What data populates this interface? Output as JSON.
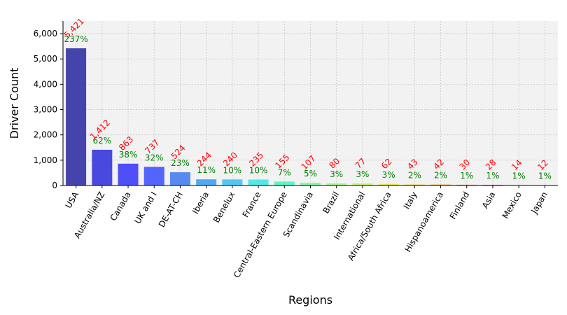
{
  "chart_data": {
    "type": "bar",
    "xlabel": "Regions",
    "ylabel": "Driver Count",
    "ylim": [
      0,
      6500
    ],
    "yticks": [
      0,
      1000,
      2000,
      3000,
      4000,
      5000,
      6000
    ],
    "ytick_labels": [
      "0",
      "1,000",
      "2,000",
      "3,000",
      "4,000",
      "5,000",
      "6,000"
    ],
    "grid": true,
    "categories": [
      "USA",
      "Australia/NZ",
      "Canada",
      "UK and I",
      "DE-AT-CH",
      "Iberia",
      "Benelux",
      "France",
      "Central-Eastern Europe",
      "Scandinavia",
      "Brazil",
      "International",
      "Africa/South Africa",
      "Italy",
      "Hispanoamerica",
      "Finland",
      "Asia",
      "Mexico",
      "Japan"
    ],
    "values": [
      5421,
      1412,
      863,
      737,
      524,
      244,
      240,
      235,
      155,
      107,
      80,
      77,
      62,
      43,
      42,
      30,
      28,
      14,
      12
    ],
    "value_labels": [
      "5,421",
      "1,412",
      "863",
      "737",
      "524",
      "244",
      "240",
      "235",
      "155",
      "107",
      "80",
      "77",
      "62",
      "43",
      "42",
      "30",
      "28",
      "14",
      "12"
    ],
    "percent_labels": [
      "237%",
      "62%",
      "38%",
      "32%",
      "23%",
      "11%",
      "10%",
      "10%",
      "7%",
      "5%",
      "3%",
      "3%",
      "3%",
      "2%",
      "2%",
      "1%",
      "1%",
      "1%",
      "1%"
    ],
    "colors": [
      "#3a3aa8",
      "#3f3fdd",
      "#4646f9",
      "#4a5dfa",
      "#4d84f0",
      "#47a4f0",
      "#4ac4f3",
      "#4be6e6",
      "#52f4c2",
      "#7df4a2",
      "#a0f484",
      "#c0f064",
      "#e2e84c",
      "#f4d644",
      "#f4b444",
      "#f09040",
      "#e0683a",
      "#d04830",
      "#c03028"
    ],
    "label_colors": {
      "value": "#ff0000",
      "percent": "#008000"
    }
  }
}
